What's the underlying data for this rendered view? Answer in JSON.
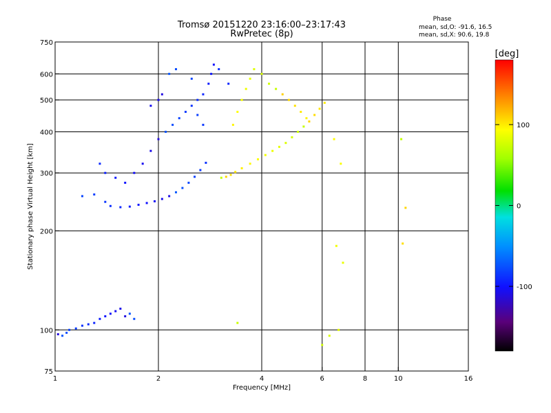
{
  "chart_data": {
    "type": "scatter",
    "title": "Tromsø 20151220 23:16:00–23:17:43",
    "subtitle": "RwPretec (8p)",
    "xlabel": "Frequency [MHz]",
    "ylabel": "Stationary phase Virtual Height [km]",
    "xscale": "log",
    "yscale": "log",
    "xlim": [
      1,
      16
    ],
    "ylim": [
      75,
      750
    ],
    "xticks": [
      {
        "value": 1,
        "label": "1"
      },
      {
        "value": 2,
        "label": "2"
      },
      {
        "value": 4,
        "label": "4"
      },
      {
        "value": 6,
        "label": "6"
      },
      {
        "value": 8,
        "label": "8"
      },
      {
        "value": 10,
        "label": "10"
      },
      {
        "value": 16,
        "label": "16"
      }
    ],
    "yticks": [
      {
        "value": 75,
        "label": "75"
      },
      {
        "value": 100,
        "label": "100"
      },
      {
        "value": 200,
        "label": "200"
      },
      {
        "value": 300,
        "label": "300"
      },
      {
        "value": 400,
        "label": "400"
      },
      {
        "value": 500,
        "label": "500"
      },
      {
        "value": 600,
        "label": "600"
      },
      {
        "value": 750,
        "label": "750"
      }
    ],
    "grid": true,
    "stats": {
      "heading": "Phase",
      "line_o": "mean, sd,O: -91.6, 16.5",
      "line_x": "mean, sd,X:  90.6, 19.8"
    },
    "colorbar": {
      "label": "[deg]",
      "range": [
        -180,
        180
      ],
      "ticks": [
        {
          "value": 100,
          "label": "100"
        },
        {
          "value": 0,
          "label": "0"
        },
        {
          "value": -100,
          "label": "-100"
        }
      ]
    },
    "series": [
      {
        "mode": "O",
        "mean_phase": -91.6,
        "points": [
          [
            1.02,
            97
          ],
          [
            1.05,
            96
          ],
          [
            1.08,
            98
          ],
          [
            1.1,
            100
          ],
          [
            1.15,
            101
          ],
          [
            1.2,
            103
          ],
          [
            1.25,
            104
          ],
          [
            1.3,
            105
          ],
          [
            1.35,
            108
          ],
          [
            1.4,
            110
          ],
          [
            1.45,
            112
          ],
          [
            1.5,
            114
          ],
          [
            1.55,
            116
          ],
          [
            1.6,
            110
          ],
          [
            1.65,
            112
          ],
          [
            1.7,
            108
          ],
          [
            1.2,
            255
          ],
          [
            1.3,
            258
          ],
          [
            1.4,
            245
          ],
          [
            1.45,
            238
          ],
          [
            1.55,
            236
          ],
          [
            1.65,
            237
          ],
          [
            1.75,
            240
          ],
          [
            1.85,
            243
          ],
          [
            1.95,
            246
          ],
          [
            2.05,
            250
          ],
          [
            2.15,
            255
          ],
          [
            2.25,
            262
          ],
          [
            2.35,
            270
          ],
          [
            2.45,
            280
          ],
          [
            2.55,
            292
          ],
          [
            2.65,
            306
          ],
          [
            2.75,
            322
          ],
          [
            1.35,
            320
          ],
          [
            1.4,
            300
          ],
          [
            1.5,
            290
          ],
          [
            1.6,
            280
          ],
          [
            1.7,
            300
          ],
          [
            1.8,
            320
          ],
          [
            1.9,
            350
          ],
          [
            2.0,
            380
          ],
          [
            2.1,
            400
          ],
          [
            2.2,
            420
          ],
          [
            2.3,
            440
          ],
          [
            2.4,
            460
          ],
          [
            2.5,
            480
          ],
          [
            2.6,
            500
          ],
          [
            2.7,
            520
          ],
          [
            2.8,
            560
          ],
          [
            2.85,
            600
          ],
          [
            2.9,
            640
          ],
          [
            1.9,
            480
          ],
          [
            2.0,
            500
          ],
          [
            2.05,
            520
          ],
          [
            2.15,
            600
          ],
          [
            2.25,
            620
          ],
          [
            2.5,
            580
          ],
          [
            2.6,
            450
          ],
          [
            2.7,
            420
          ],
          [
            3.0,
            620
          ],
          [
            3.2,
            560
          ]
        ]
      },
      {
        "mode": "X",
        "mean_phase": 90.6,
        "points": [
          [
            3.05,
            290
          ],
          [
            3.15,
            292
          ],
          [
            3.25,
            296
          ],
          [
            3.35,
            302
          ],
          [
            3.5,
            310
          ],
          [
            3.7,
            320
          ],
          [
            3.9,
            330
          ],
          [
            4.1,
            340
          ],
          [
            4.3,
            350
          ],
          [
            4.5,
            360
          ],
          [
            4.7,
            370
          ],
          [
            4.9,
            385
          ],
          [
            5.1,
            400
          ],
          [
            5.3,
            415
          ],
          [
            5.5,
            430
          ],
          [
            5.7,
            450
          ],
          [
            5.9,
            470
          ],
          [
            6.1,
            490
          ],
          [
            3.3,
            420
          ],
          [
            3.4,
            460
          ],
          [
            3.5,
            500
          ],
          [
            3.6,
            540
          ],
          [
            3.7,
            580
          ],
          [
            3.8,
            620
          ],
          [
            4.0,
            600
          ],
          [
            4.2,
            560
          ],
          [
            4.4,
            540
          ],
          [
            4.6,
            520
          ],
          [
            4.8,
            500
          ],
          [
            5.0,
            480
          ],
          [
            5.2,
            460
          ],
          [
            5.4,
            440
          ],
          [
            6.5,
            380
          ],
          [
            6.8,
            320
          ],
          [
            6.6,
            180
          ],
          [
            6.9,
            160
          ],
          [
            6.7,
            100
          ],
          [
            6.3,
            96
          ],
          [
            6.0,
            90
          ],
          [
            3.4,
            105
          ],
          [
            10.2,
            380
          ],
          [
            10.5,
            235
          ],
          [
            10.3,
            183
          ]
        ]
      }
    ]
  }
}
